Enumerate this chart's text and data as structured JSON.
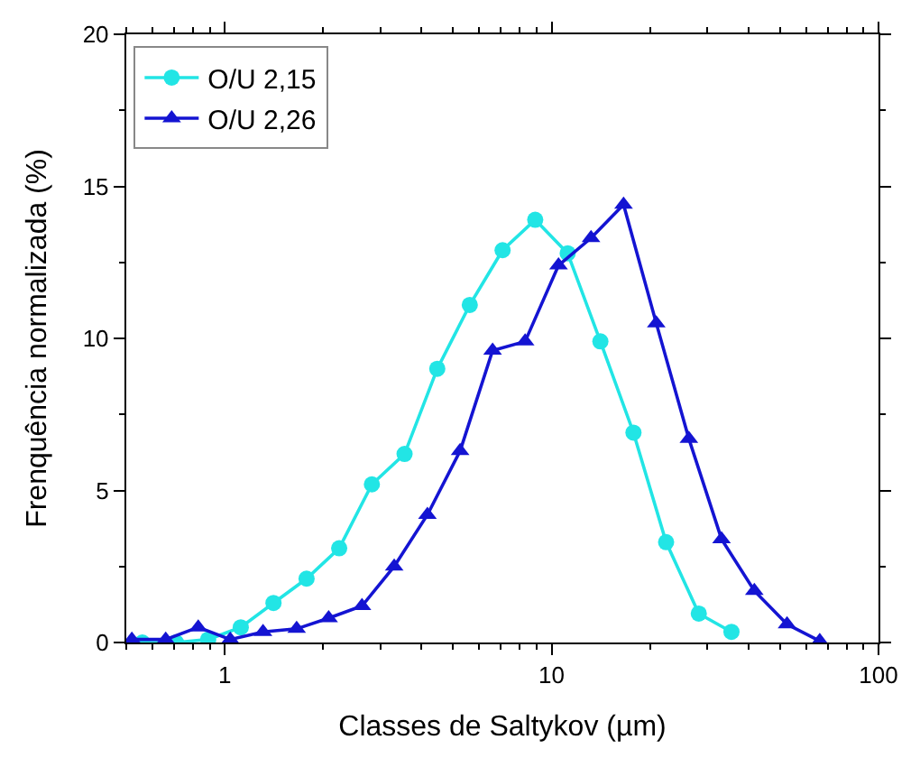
{
  "chart_data": {
    "type": "line",
    "xlabel": "Classes de Saltykov (µm)",
    "ylabel": "Frenquência normalizada (%)",
    "log": "x",
    "xlim": [
      0.5,
      100
    ],
    "xticks": [
      1,
      10,
      100
    ],
    "ylim": [
      0,
      20
    ],
    "yticks": [
      0,
      5,
      10,
      15,
      20
    ],
    "legend": "top left",
    "line_style": "solid",
    "series": [
      {
        "name": "O/U 2,15",
        "color": "#22e5e5",
        "marker": "circle",
        "x": [
          0.56,
          0.71,
          0.89,
          1.12,
          1.41,
          1.78,
          2.24,
          2.82,
          3.55,
          4.47,
          5.62,
          7.08,
          8.91,
          11.2,
          14.1,
          17.8,
          22.4,
          28.2,
          35.5
        ],
        "values": [
          0,
          0,
          0.1,
          0.5,
          1.3,
          2.1,
          3.1,
          5.2,
          6.2,
          9.0,
          11.1,
          12.9,
          13.9,
          12.8,
          9.9,
          6.9,
          3.3,
          0.95,
          0.35
        ]
      },
      {
        "name": "O/U 2,26",
        "color": "#1414d2",
        "marker": "triangle",
        "x": [
          0.52,
          0.66,
          0.83,
          1.04,
          1.31,
          1.66,
          2.08,
          2.63,
          3.3,
          4.17,
          5.25,
          6.6,
          8.3,
          10.5,
          13.2,
          16.6,
          20.9,
          26.3,
          33.1,
          41.7,
          52.5,
          66.1
        ],
        "values": [
          0.1,
          0.1,
          0.5,
          0.1,
          0.35,
          0.45,
          0.8,
          1.2,
          2.5,
          4.2,
          6.3,
          9.6,
          9.9,
          12.4,
          13.3,
          14.4,
          10.5,
          6.7,
          3.4,
          1.7,
          0.6,
          0.05
        ]
      }
    ]
  }
}
